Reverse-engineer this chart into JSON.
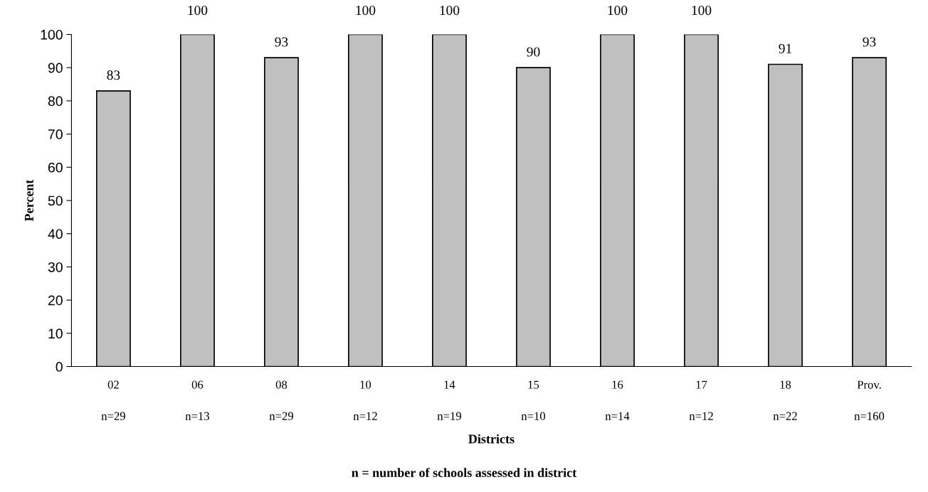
{
  "chart_data": {
    "type": "bar",
    "xlabel": "Districts",
    "ylabel": "Percent",
    "categories": [
      "02\n\nn=29",
      "06\n\nn=13",
      "08\n\nn=29",
      "10\n\nn=12",
      "14\n\nn=19",
      "15\n\nn=10",
      "16\n\nn=14",
      "17\n\nn=12",
      "18\n\nn=22",
      "Prov.\n\nn=160"
    ],
    "values": [
      83,
      100,
      93,
      100,
      100,
      90,
      100,
      100,
      91,
      93
    ],
    "color": "#c0c0c0",
    "ylim": [
      0,
      100
    ],
    "yticks": [
      0,
      10,
      20,
      30,
      40,
      50,
      60,
      70,
      80,
      90,
      100
    ],
    "data_labels": true,
    "grid": false,
    "legend": false,
    "annotations": [
      "n = number of schools assessed in district"
    ]
  }
}
